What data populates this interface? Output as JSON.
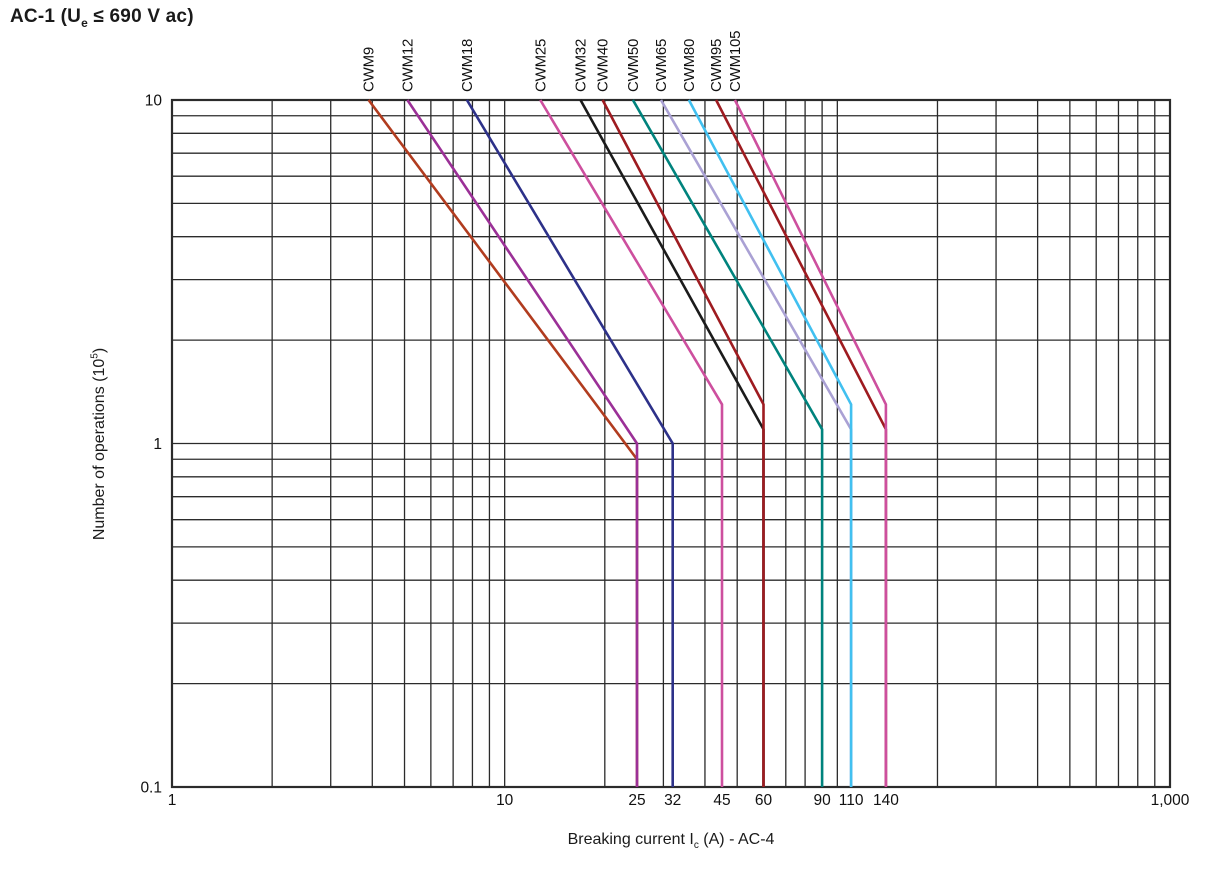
{
  "header": {
    "title_prefix": "AC-1 (U",
    "title_sub": "e",
    "title_suffix": " ≤ 690 V ac)"
  },
  "axes": {
    "y_label_prefix": "Number of operations (10",
    "y_label_sup": "5",
    "y_label_suffix": ")",
    "x_label_prefix": "Breaking current I",
    "x_label_sub": "c",
    "x_label_suffix": " (A) - AC-4"
  },
  "chart_data": {
    "type": "line",
    "title": "AC-1 (Ue ≤ 690 V ac)",
    "xlabel": "Breaking current Ic (A) - AC-4",
    "ylabel": "Number of operations (10^5)",
    "x_scale": "log",
    "y_scale": "log",
    "xlim": [
      1,
      1000
    ],
    "ylim": [
      0.1,
      10
    ],
    "grid": true,
    "grid_color": "#2b2b2b",
    "x_ticks": [
      {
        "value": 1,
        "label": "1"
      },
      {
        "value": 10,
        "label": "10"
      },
      {
        "value": 25,
        "label": "25"
      },
      {
        "value": 32,
        "label": "32"
      },
      {
        "value": 45,
        "label": "45"
      },
      {
        "value": 60,
        "label": "60"
      },
      {
        "value": 90,
        "label": "90"
      },
      {
        "value": 110,
        "label": "110"
      },
      {
        "value": 140,
        "label": "140"
      },
      {
        "value": 1000,
        "label": "1,000"
      }
    ],
    "y_ticks": [
      {
        "value": 10,
        "label": "10"
      },
      {
        "value": 1,
        "label": "1"
      },
      {
        "value": 0.1,
        "label": "0.1"
      }
    ],
    "series": [
      {
        "label": "CWM9",
        "color": "#b13c1f",
        "current_at_10": 3.9,
        "rated_current": 25,
        "knee_operations": 0.9,
        "points": [
          [
            3.9,
            10
          ],
          [
            25,
            0.9
          ],
          [
            25,
            0.1
          ]
        ]
      },
      {
        "label": "CWM12",
        "color": "#9b3097",
        "current_at_10": 5.1,
        "rated_current": 25,
        "knee_operations": 1.0,
        "points": [
          [
            5.1,
            10
          ],
          [
            25,
            1.0
          ],
          [
            25,
            0.1
          ]
        ]
      },
      {
        "label": "CWM18",
        "color": "#2d3189",
        "current_at_10": 7.7,
        "rated_current": 32,
        "knee_operations": 1.0,
        "points": [
          [
            7.7,
            10
          ],
          [
            32,
            1.0
          ],
          [
            32,
            0.1
          ]
        ]
      },
      {
        "label": "CWM25",
        "color": "#cd4f9e",
        "current_at_10": 12.8,
        "rated_current": 45,
        "knee_operations": 1.3,
        "points": [
          [
            12.8,
            10
          ],
          [
            45,
            1.3
          ],
          [
            45,
            0.1
          ]
        ]
      },
      {
        "label": "CWM32",
        "color": "#1b1b1b",
        "current_at_10": 16.9,
        "rated_current": 60,
        "knee_operations": 1.1,
        "points": [
          [
            16.9,
            10
          ],
          [
            60,
            1.1
          ],
          [
            60,
            0.1
          ]
        ]
      },
      {
        "label": "CWM40",
        "color": "#9e1b20",
        "current_at_10": 19.7,
        "rated_current": 60,
        "knee_operations": 1.3,
        "points": [
          [
            19.7,
            10
          ],
          [
            60,
            1.3
          ],
          [
            60,
            0.1
          ]
        ]
      },
      {
        "label": "CWM50",
        "color": "#00837d",
        "current_at_10": 24.3,
        "rated_current": 90,
        "knee_operations": 1.1,
        "points": [
          [
            24.3,
            10
          ],
          [
            90,
            1.1
          ],
          [
            90,
            0.1
          ]
        ]
      },
      {
        "label": "CWM65",
        "color": "#aaa1d4",
        "current_at_10": 29.5,
        "rated_current": 110,
        "knee_operations": 1.1,
        "points": [
          [
            29.5,
            10
          ],
          [
            110,
            1.1
          ],
          [
            110,
            0.1
          ]
        ]
      },
      {
        "label": "CWM80",
        "color": "#41c0f0",
        "current_at_10": 35.8,
        "rated_current": 110,
        "knee_operations": 1.3,
        "points": [
          [
            35.8,
            10
          ],
          [
            110,
            1.3
          ],
          [
            110,
            0.1
          ]
        ]
      },
      {
        "label": "CWM95",
        "color": "#9e1b20",
        "current_at_10": 43.2,
        "rated_current": 140,
        "knee_operations": 1.1,
        "points": [
          [
            43.2,
            10
          ],
          [
            140,
            1.1
          ],
          [
            140,
            0.1
          ]
        ]
      },
      {
        "label": "CWM105",
        "color": "#cd4f9e",
        "current_at_10": 49.2,
        "rated_current": 140,
        "knee_operations": 1.3,
        "points": [
          [
            49.2,
            10
          ],
          [
            140,
            1.3
          ],
          [
            140,
            0.1
          ]
        ]
      }
    ]
  }
}
